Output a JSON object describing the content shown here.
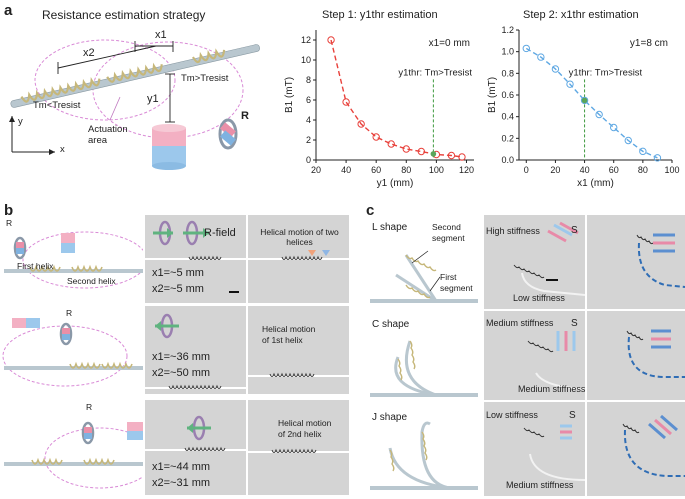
{
  "panel_a": {
    "letter": "a",
    "heading": "Resistance estimation strategy",
    "labels": {
      "x1": "x1",
      "x2": "x2",
      "y1": "y1",
      "tm_less": "Tm<Tresist",
      "tm_greater": "Tm>Tresist",
      "axis_x": "x",
      "axis_y": "y",
      "actuation_area": "Actuation area",
      "R": "R"
    },
    "step1_title": "Step 1: y1thr estimation",
    "step2_title": "Step 2: x1thr estimation"
  },
  "chart_data": [
    {
      "type": "line",
      "title": "Step 1: y1thr estimation",
      "xlabel": "y1 (mm)",
      "ylabel": "B1 (mT)",
      "xlim": [
        20,
        125
      ],
      "ylim": [
        0,
        13
      ],
      "xticks": [
        20,
        40,
        60,
        80,
        100,
        120
      ],
      "yticks": [
        0,
        2,
        4,
        6,
        8,
        10,
        12
      ],
      "series": [
        {
          "x": [
            30,
            40,
            50,
            60,
            70,
            80,
            90,
            100,
            110,
            117
          ],
          "y": [
            12.0,
            5.8,
            3.6,
            2.3,
            1.6,
            1.1,
            0.85,
            0.55,
            0.45,
            0.3
          ]
        }
      ],
      "annotation": "x1=0 mm",
      "threshold_label": "y1thr: Tm>Tresist",
      "threshold_x": 98,
      "color": "#e8413b",
      "grid": false
    },
    {
      "type": "line",
      "title": "Step 2: x1thr estimation",
      "xlabel": "x1 (mm)",
      "ylabel": "B1 (mT)",
      "xlim": [
        -5,
        100
      ],
      "ylim": [
        0,
        1.2
      ],
      "xticks": [
        0,
        20,
        40,
        60,
        80,
        100
      ],
      "yticks": [
        0,
        0.2,
        0.4,
        0.6,
        0.8,
        1.0,
        1.2
      ],
      "series": [
        {
          "x": [
            0,
            10,
            20,
            30,
            40,
            50,
            60,
            70,
            80,
            90
          ],
          "y": [
            1.03,
            0.95,
            0.84,
            0.7,
            0.55,
            0.42,
            0.3,
            0.18,
            0.08,
            0.02
          ]
        }
      ],
      "annotation": "y1=8 cm",
      "threshold_label": "y1thr: Tm>Tresist",
      "threshold_x": 40,
      "color": "#5fa8e3",
      "grid": false
    }
  ],
  "panel_b": {
    "letter": "b",
    "rows": [
      {
        "R": "R",
        "first_helix": "First helix",
        "second_helix": "Second helix",
        "field": "R-field",
        "x1": "x1=~5 mm",
        "x2": "x2=~5 mm",
        "motion": "Helical motion of two helices"
      },
      {
        "R": "R",
        "x1": "x1=~36 mm",
        "x2": "x2=~50 mm",
        "motion_line1": "Helical motion",
        "motion_line2": "of 1st helix"
      },
      {
        "R": "R",
        "x1": "x1=~44 mm",
        "x2": "x2=~31 mm",
        "motion_line1": "Helical motion",
        "motion_line2": "of 2nd helix"
      }
    ]
  },
  "panel_c": {
    "letter": "c",
    "rows": [
      {
        "shape": "L shape",
        "seg2": "Second segment",
        "seg1": "First segment",
        "stiff_top": "High stiffness",
        "stiff_bottom": "Low stiffness",
        "S": "S"
      },
      {
        "shape": "C shape",
        "stiff_top": "Medium stiffness",
        "stiff_bottom": "Medium stiffness",
        "S": "S"
      },
      {
        "shape": "J shape",
        "stiff_top": "Low stiffness",
        "stiff_bottom": "Medium stiffness",
        "S": "S"
      }
    ]
  }
}
